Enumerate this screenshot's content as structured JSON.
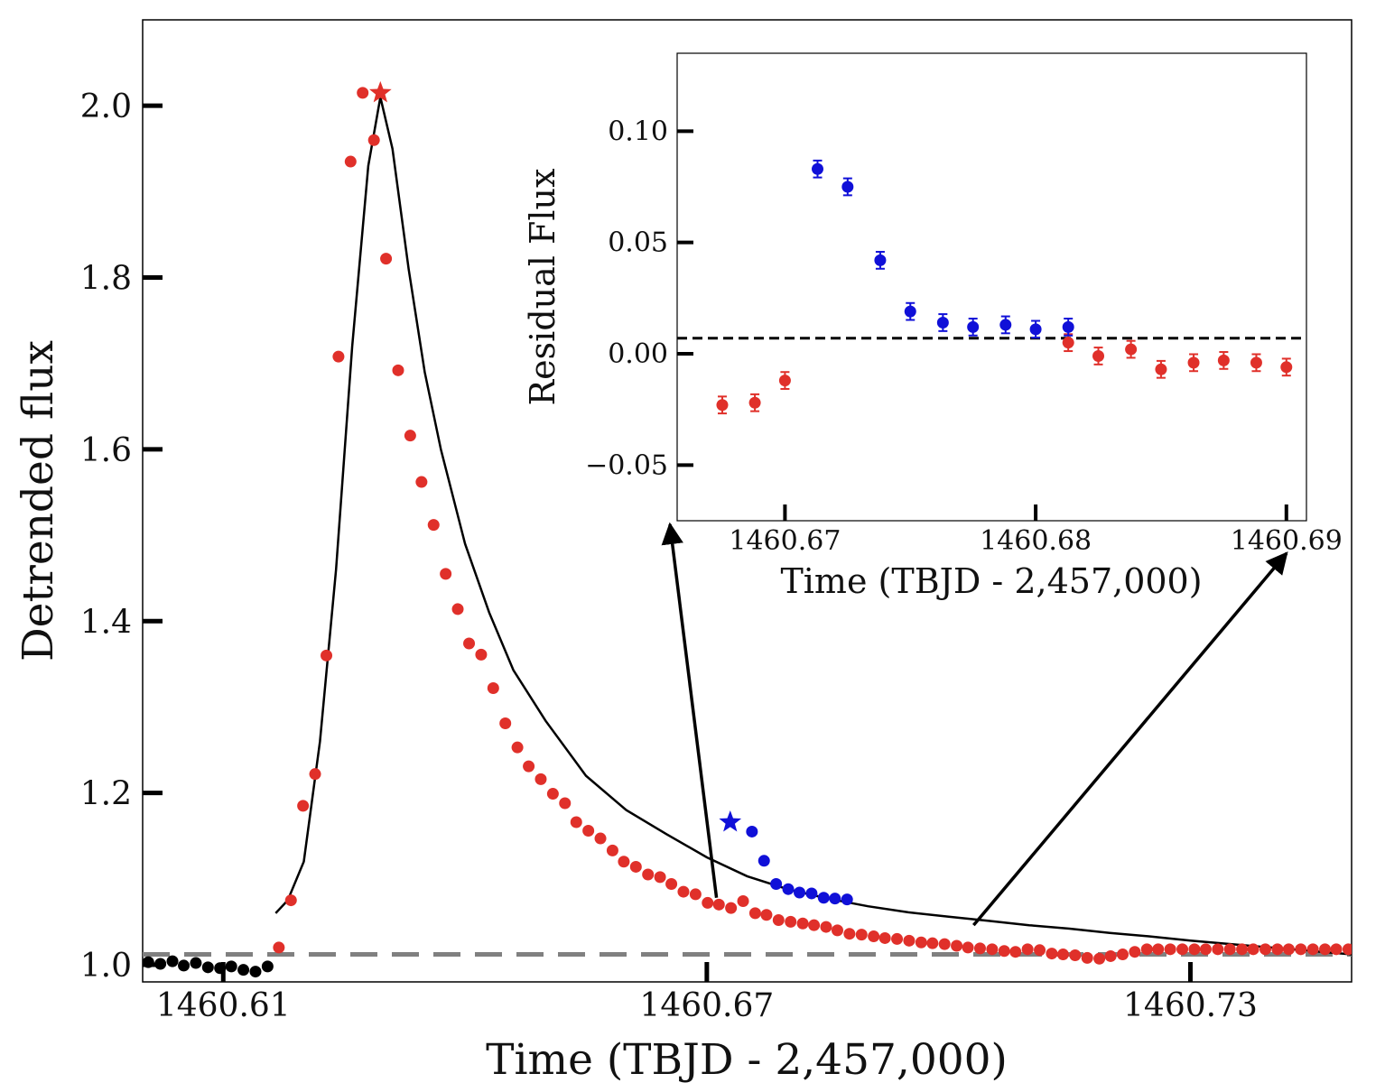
{
  "colors": {
    "flare": "#e0302a",
    "secondary": "#1010d8",
    "quiescent": "#000000",
    "model": "#000000",
    "baseline": "#808080"
  },
  "chart_data": [
    {
      "id": "main",
      "type": "scatter",
      "xlabel": "Time (TBJD - 2,457,000)",
      "ylabel": "Detrended flux",
      "xlim": [
        1460.6,
        1460.75
      ],
      "ylim": [
        0.98,
        2.1
      ],
      "xticks": [
        1460.61,
        1460.67,
        1460.73
      ],
      "xtick_labels": [
        "1460.61",
        "1460.67",
        "1460.73"
      ],
      "yticks": [
        1.0,
        1.2,
        1.4,
        1.6,
        1.8,
        2.0
      ],
      "ytick_labels": [
        "1.0",
        "1.2",
        "1.4",
        "1.6",
        "1.8",
        "2.0"
      ],
      "baseline": 1.012,
      "series": [
        {
          "role": "quiescent",
          "color_key": "quiescent",
          "x": [
            1460.6007,
            1460.6022,
            1460.6037,
            1460.6051,
            1460.6066,
            1460.6081,
            1460.6096,
            1460.611,
            1460.6125,
            1460.614,
            1460.6155
          ],
          "y": [
            1.003,
            1.001,
            1.004,
            0.999,
            1.002,
            0.997,
            0.996,
            0.998,
            0.994,
            0.992,
            0.998
          ]
        },
        {
          "role": "flare",
          "color_key": "flare",
          "x": [
            1460.6169,
            1460.6184,
            1460.6199,
            1460.6214,
            1460.6228,
            1460.6243,
            1460.6258,
            1460.6273,
            1460.6287,
            1460.6302,
            1460.6317,
            1460.6332,
            1460.6346,
            1460.6361,
            1460.6376,
            1460.6391,
            1460.6405,
            1460.642,
            1460.6435,
            1460.645,
            1460.6465,
            1460.6479,
            1460.6494,
            1460.6509,
            1460.6524,
            1460.6538,
            1460.6553,
            1460.6568,
            1460.6583,
            1460.6597,
            1460.6612,
            1460.6627,
            1460.6642,
            1460.6656,
            1460.6671,
            1460.6686,
            1460.6701,
            1460.6715,
            1460.673,
            1460.6745,
            1460.676,
            1460.6774,
            1460.6789,
            1460.6804,
            1460.6819,
            1460.6833,
            1460.6848,
            1460.6862,
            1460.6877,
            1460.6892,
            1460.6907,
            1460.6921,
            1460.6936,
            1460.6951,
            1460.6966,
            1460.698,
            1460.6995,
            1460.701,
            1460.7024,
            1460.7039,
            1460.7054,
            1460.7069,
            1460.7083,
            1460.7098,
            1460.7113,
            1460.7128,
            1460.7142,
            1460.7157,
            1460.7172,
            1460.7187,
            1460.7201,
            1460.7216,
            1460.7231,
            1460.7246,
            1460.726,
            1460.7275,
            1460.729,
            1460.7305,
            1460.7319,
            1460.7334,
            1460.7349,
            1460.7364,
            1460.7378,
            1460.7393,
            1460.7408,
            1460.7422,
            1460.7437,
            1460.7452,
            1460.7467,
            1460.7481,
            1460.7496
          ],
          "y": [
            1.02,
            1.075,
            1.185,
            1.222,
            1.36,
            1.708,
            1.935,
            2.015,
            1.96,
            1.822,
            1.692,
            1.616,
            1.562,
            1.512,
            1.455,
            1.414,
            1.374,
            1.361,
            1.322,
            1.281,
            1.253,
            1.231,
            1.216,
            1.199,
            1.188,
            1.166,
            1.156,
            1.147,
            1.133,
            1.12,
            1.114,
            1.105,
            1.102,
            1.094,
            1.085,
            1.082,
            1.072,
            1.07,
            1.066,
            1.074,
            1.06,
            1.058,
            1.052,
            1.05,
            1.048,
            1.046,
            1.044,
            1.04,
            1.036,
            1.035,
            1.033,
            1.031,
            1.03,
            1.028,
            1.026,
            1.025,
            1.024,
            1.022,
            1.02,
            1.019,
            1.018,
            1.016,
            1.015,
            1.018,
            1.017,
            1.013,
            1.012,
            1.011,
            1.008,
            1.007,
            1.01,
            1.012,
            1.015,
            1.018,
            1.018,
            1.018,
            1.018,
            1.018,
            1.018,
            1.018,
            1.018,
            1.018,
            1.018,
            1.018,
            1.018,
            1.018,
            1.018,
            1.018,
            1.018,
            1.018,
            1.018
          ]
        },
        {
          "role": "secondary",
          "color_key": "secondary",
          "x": [
            1460.6756,
            1460.6771,
            1460.6786,
            1460.6801,
            1460.6815,
            1460.683,
            1460.6845,
            1460.6859,
            1460.6874
          ],
          "y": [
            1.155,
            1.121,
            1.094,
            1.088,
            1.084,
            1.083,
            1.078,
            1.077,
            1.076
          ]
        }
      ],
      "markers": [
        {
          "role": "flare-peak-star",
          "color_key": "flare",
          "x": 1460.6295,
          "y": 2.015
        },
        {
          "role": "secondary-peak-star",
          "color_key": "secondary",
          "x": 1460.6729,
          "y": 1.166
        }
      ],
      "model": {
        "x": [
          1460.6165,
          1460.618,
          1460.62,
          1460.622,
          1460.624,
          1460.626,
          1460.628,
          1460.6295,
          1460.631,
          1460.633,
          1460.635,
          1460.637,
          1460.64,
          1460.643,
          1460.646,
          1460.65,
          1460.655,
          1460.66,
          1460.665,
          1460.67,
          1460.675,
          1460.68,
          1460.685,
          1460.69,
          1460.695,
          1460.7,
          1460.705,
          1460.71,
          1460.715,
          1460.72,
          1460.725,
          1460.73,
          1460.735,
          1460.74,
          1460.745,
          1460.75
        ],
        "y": [
          1.06,
          1.075,
          1.12,
          1.26,
          1.46,
          1.72,
          1.93,
          2.01,
          1.95,
          1.81,
          1.69,
          1.6,
          1.49,
          1.41,
          1.343,
          1.284,
          1.22,
          1.18,
          1.152,
          1.125,
          1.103,
          1.088,
          1.077,
          1.068,
          1.061,
          1.056,
          1.051,
          1.046,
          1.042,
          1.037,
          1.033,
          1.028,
          1.024,
          1.02,
          1.016,
          1.012
        ]
      },
      "zoom_arrows": [
        {
          "from_x": 1460.6712,
          "from_y": 1.078
        },
        {
          "from_x": 1460.7031,
          "from_y": 1.046
        }
      ]
    },
    {
      "id": "inset",
      "type": "scatter",
      "xlabel": "Time (TBJD - 2,457,000)",
      "ylabel": "Residual Flux",
      "xlim": [
        1460.6657,
        1460.6908
      ],
      "ylim": [
        -0.075,
        0.135
      ],
      "xticks": [
        1460.67,
        1460.68,
        1460.69
      ],
      "xtick_labels": [
        "1460.67",
        "1460.68",
        "1460.69"
      ],
      "yticks": [
        -0.05,
        0.0,
        0.05,
        0.1
      ],
      "ytick_labels": [
        "−0.05",
        "0.00",
        "0.05",
        "0.10"
      ],
      "reference_line": 0.007,
      "error": 0.0038,
      "series": [
        {
          "role": "flare",
          "color_key": "flare",
          "x": [
            1460.6675,
            1460.6688,
            1460.67,
            1460.6813,
            1460.6825,
            1460.6838,
            1460.685,
            1460.6863,
            1460.6875,
            1460.6888,
            1460.69
          ],
          "y": [
            -0.023,
            -0.022,
            -0.012,
            0.005,
            -0.001,
            0.002,
            -0.007,
            -0.004,
            -0.003,
            -0.004,
            -0.006
          ]
        },
        {
          "role": "secondary",
          "color_key": "secondary",
          "x": [
            1460.6713,
            1460.6725,
            1460.6738,
            1460.675,
            1460.6763,
            1460.6775,
            1460.6788,
            1460.68,
            1460.6813
          ],
          "y": [
            0.083,
            0.075,
            0.042,
            0.019,
            0.014,
            0.012,
            0.013,
            0.011,
            0.012
          ]
        }
      ]
    }
  ]
}
